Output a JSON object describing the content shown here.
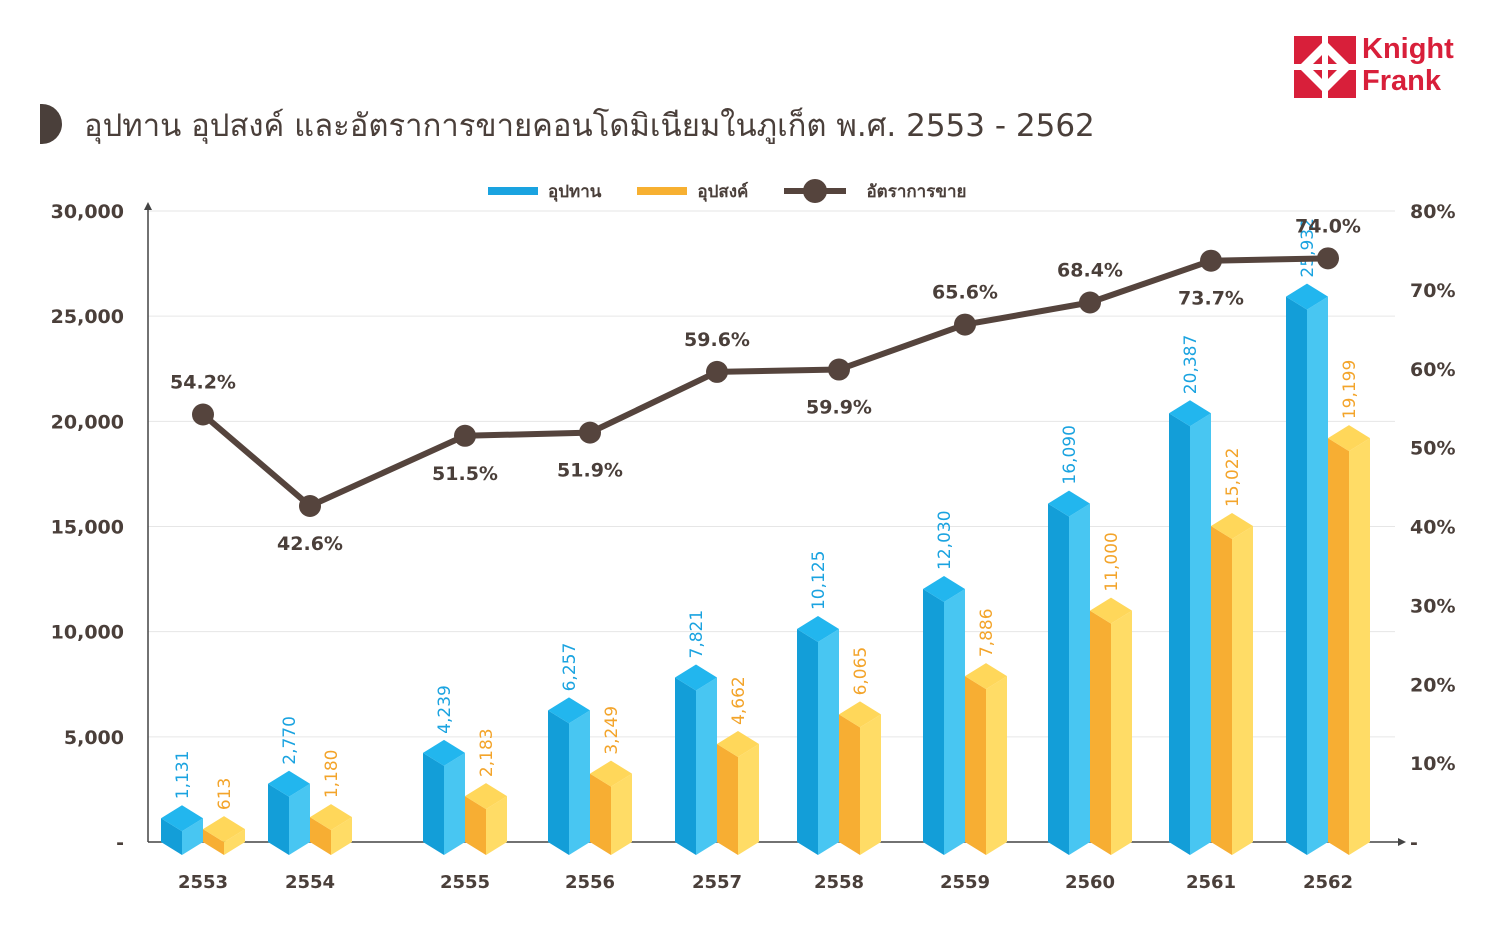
{
  "title": "อุปทาน อุปสงค์ และอัตราการขายคอนโดมิเนียมในภูเก็ต พ.ศ. 2553 - 2562",
  "logo": {
    "line1": "Knight",
    "line2": "Frank",
    "color": "#d81f3a"
  },
  "colors": {
    "supply": "#1aa3e0",
    "demand": "#f7b031",
    "rate": "#55443d",
    "text": "#4a3f3a"
  },
  "chart_data": {
    "type": "bar",
    "categories": [
      "2553",
      "2554",
      "2555",
      "2556",
      "2557",
      "2558",
      "2559",
      "2560",
      "2561",
      "2562"
    ],
    "series": [
      {
        "name": "อุปทาน",
        "type": "bar",
        "axis": "left",
        "values": [
          1131,
          2770,
          4239,
          6257,
          7821,
          10125,
          12030,
          16090,
          20387,
          25932
        ],
        "labels": [
          "1,131",
          "2,770",
          "4,239",
          "6,257",
          "7,821",
          "10,125",
          "12,030",
          "16,090",
          "20,387",
          "25,932"
        ]
      },
      {
        "name": "อุปสงค์",
        "type": "bar",
        "axis": "left",
        "values": [
          613,
          1180,
          2183,
          3249,
          4662,
          6065,
          7886,
          11000,
          15022,
          19199
        ],
        "labels": [
          "613",
          "1,180",
          "2,183",
          "3,249",
          "4,662",
          "6,065",
          "7,886",
          "11,000",
          "15,022",
          "19,199"
        ]
      },
      {
        "name": "อัตราการขาย",
        "type": "line",
        "axis": "right",
        "values": [
          54.2,
          42.6,
          51.5,
          51.9,
          59.6,
          59.9,
          65.6,
          68.4,
          73.7,
          74.0
        ],
        "labels": [
          "54.2%",
          "42.6%",
          "51.5%",
          "51.9%",
          "59.6%",
          "59.9%",
          "65.6%",
          "68.4%",
          "73.7%",
          "74.0%"
        ],
        "label_pos": [
          "above",
          "below",
          "below",
          "below",
          "above",
          "below",
          "above",
          "above",
          "below",
          "above"
        ]
      }
    ],
    "y_left": {
      "min": 0,
      "max": 30000,
      "ticks": [
        0,
        5000,
        10000,
        15000,
        20000,
        25000,
        30000
      ],
      "tick_labels": [
        "-",
        "5,000",
        "10,000",
        "15,000",
        "20,000",
        "25,000",
        "30,000"
      ]
    },
    "y_right": {
      "min": 0,
      "max": 80,
      "ticks": [
        0,
        10,
        20,
        30,
        40,
        50,
        60,
        70,
        80
      ],
      "tick_labels": [
        "-",
        "10%",
        "20%",
        "30%",
        "40%",
        "50%",
        "60%",
        "70%",
        "80%"
      ]
    },
    "grid": true,
    "legend": "top-center"
  }
}
